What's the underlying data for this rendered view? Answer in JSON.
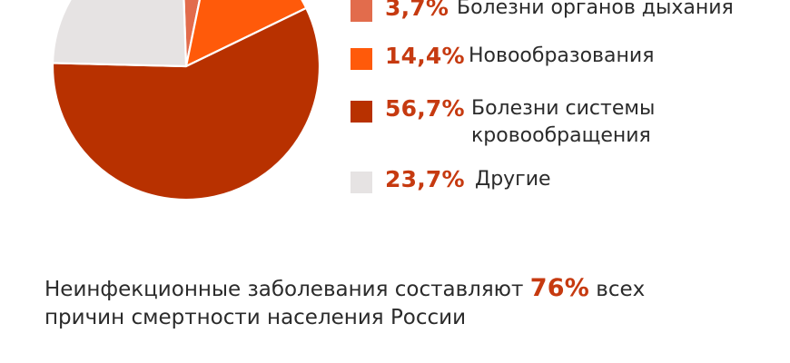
{
  "chart_data": {
    "type": "pie",
    "title": "",
    "values": [
      3.7,
      14.4,
      56.7,
      23.7
    ],
    "labels": [
      "Болезни органов дыхания",
      "Новообразования",
      "Болезни системы кровообращения",
      "Другие"
    ],
    "legend": [
      {
        "pct": "3,7%",
        "label_lines": [
          "Болезни органов дыхания"
        ],
        "color": "#e26c4c",
        "value": 3.7
      },
      {
        "pct": "14,4%",
        "label_lines": [
          "Новообразования"
        ],
        "color": "#ff5a0a",
        "value": 14.4
      },
      {
        "pct": "56,7%",
        "label_lines": [
          "Болезни системы",
          "кровообращения"
        ],
        "color": "#b83100",
        "value": 56.7
      },
      {
        "pct": "23,7%",
        "label_lines": [
          "Другие"
        ],
        "color": "#e6e3e3",
        "value": 23.7
      }
    ],
    "pct_text_color": "#c63a10",
    "legend_placement": "right"
  },
  "footer": {
    "line1_before": "Неинфекционные заболевания составляют ",
    "line1_highlight": "76%",
    "line1_after": " всех",
    "line2": "причин смертности населения России"
  },
  "colors": {
    "accent": "#c63a10",
    "text": "#2b2b2b"
  }
}
